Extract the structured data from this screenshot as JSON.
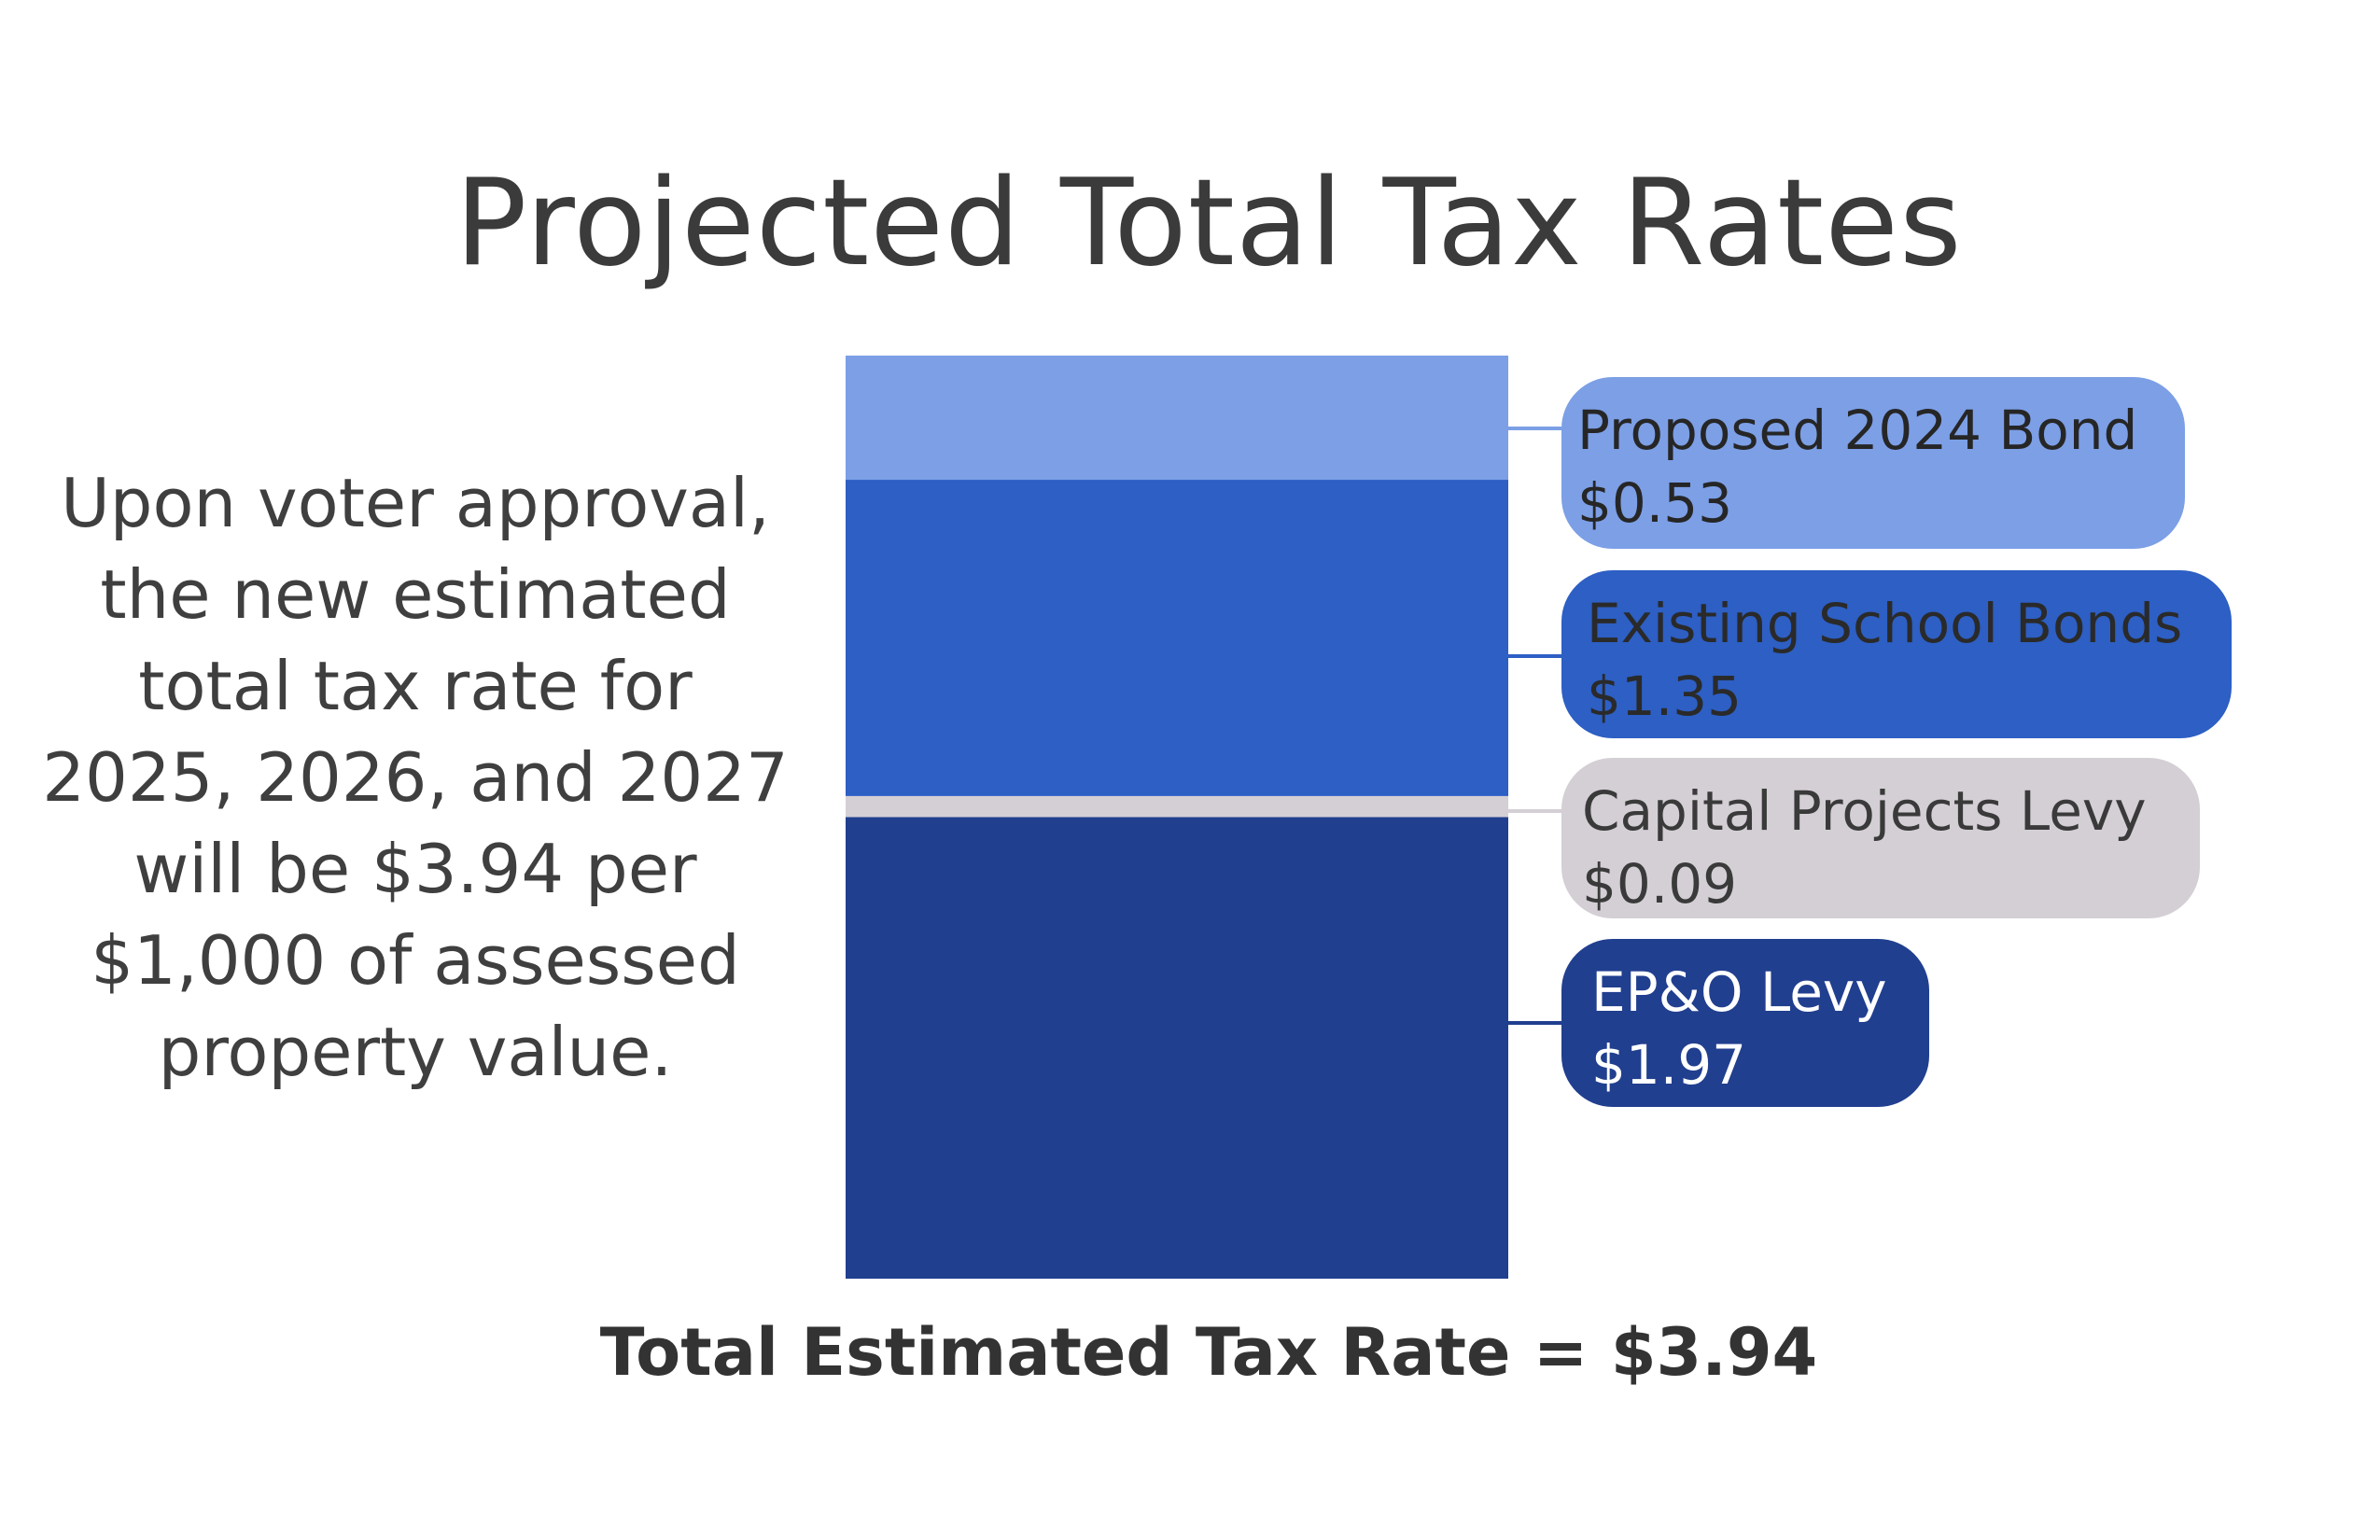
{
  "chart_data": {
    "type": "bar",
    "subtype": "stacked",
    "title": "Projected Total Tax Rates",
    "series": [
      {
        "name": "EP&O Levy",
        "value": 1.97,
        "label": "$1.97",
        "color": "#213f8f",
        "text_color": "#ffffff"
      },
      {
        "name": "Capital Projects Levy",
        "value": 0.09,
        "label": "$0.09",
        "color": "#d4cfd5",
        "text_color": "#3a3a3a"
      },
      {
        "name": "Existing School Bonds",
        "value": 1.35,
        "label": "$1.35",
        "color": "#2d5fc4",
        "text_color": "#2a2a2a"
      },
      {
        "name": "Proposed 2024 Bond",
        "value": 0.53,
        "label": "$0.53",
        "color": "#7c9fe6",
        "text_color": "#262626"
      }
    ],
    "total": 3.94
  },
  "description": "Upon voter approval, the new estimated total tax rate for 2025, 2026, and 2027 will be $3.94 per $1,000 of assessed property value.",
  "total_label": "Total Estimated Tax Rate = $3.94"
}
